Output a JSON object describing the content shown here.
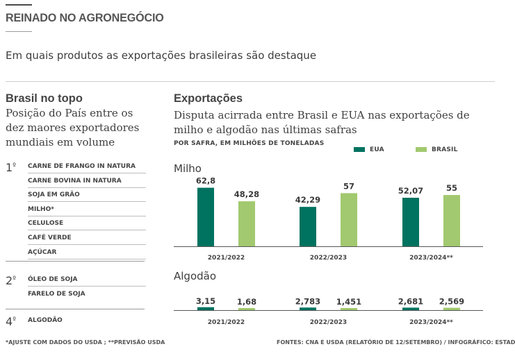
{
  "header": {
    "title": "REINADO NO AGRONEGÓCIO",
    "subtitle": "Em quais produtos as exportações brasileiras são destaque"
  },
  "left_panel": {
    "heading": "Brasil no topo",
    "description": "Posição do País entre os dez maores exportadores mundiais em volume",
    "groups": [
      {
        "rank": "1",
        "rank_sup": "º",
        "items": [
          "CARNE DE FRANGO IN NATURA",
          "CARNE BOVINA IN NATURA",
          "SOJA EM GRÃO",
          "MILHO*",
          "CELULOSE",
          "CAFÉ VERDE",
          "AÇÚCAR"
        ]
      },
      {
        "rank": "2",
        "rank_sup": "º",
        "items": [
          "ÓLEO DE SOJA",
          "FARELO DE SOJA"
        ]
      },
      {
        "rank": "4",
        "rank_sup": "º",
        "items": [
          "ALGODÃO"
        ]
      }
    ]
  },
  "right_panel": {
    "heading": "Exportações",
    "description": "Disputa acirrada entre Brasil e EUA nas exportações de milho e algodão nas últimas safras",
    "unit_note": "POR SAFRA, EM MILHÕES DE TONELADAS"
  },
  "colors": {
    "eua": "#007360",
    "brasil": "#a2c96f",
    "axis": "#555555"
  },
  "chart_data": [
    {
      "type": "bar",
      "title": "Milho",
      "categories": [
        "2021/2022",
        "2022/2023",
        "2023/2024**"
      ],
      "series": [
        {
          "name": "EUA",
          "values": [
            62.8,
            42.29,
            52.07
          ],
          "labels": [
            "62,8",
            "42,29",
            "52,07"
          ]
        },
        {
          "name": "BRASIL",
          "values": [
            48.28,
            57,
            55
          ],
          "labels": [
            "48,28",
            "57",
            "55"
          ]
        }
      ],
      "ylim": [
        0,
        70
      ],
      "legend": "top-right",
      "grid": false
    },
    {
      "type": "bar",
      "title": "Algodão",
      "categories": [
        "2021/2022",
        "2022/2023",
        "2023/2024**"
      ],
      "series": [
        {
          "name": "EUA",
          "values": [
            3.15,
            2.783,
            2.681
          ],
          "labels": [
            "3,15",
            "2,783",
            "2,681"
          ]
        },
        {
          "name": "BRASIL",
          "values": [
            1.68,
            1.451,
            2.569
          ],
          "labels": [
            "1,68",
            "1,451",
            "2,569"
          ]
        }
      ],
      "ylim": [
        0,
        70
      ],
      "legend": "top-right",
      "grid": false
    }
  ],
  "footer": {
    "note": "*AJUSTE COM DADOS DO USDA ; **PREVISÃO USDA",
    "source": "FONTES: CNA E USDA (RELATÓRIO DE 12/SETEMBRO) / INFOGRÁFICO: ESTAD"
  }
}
